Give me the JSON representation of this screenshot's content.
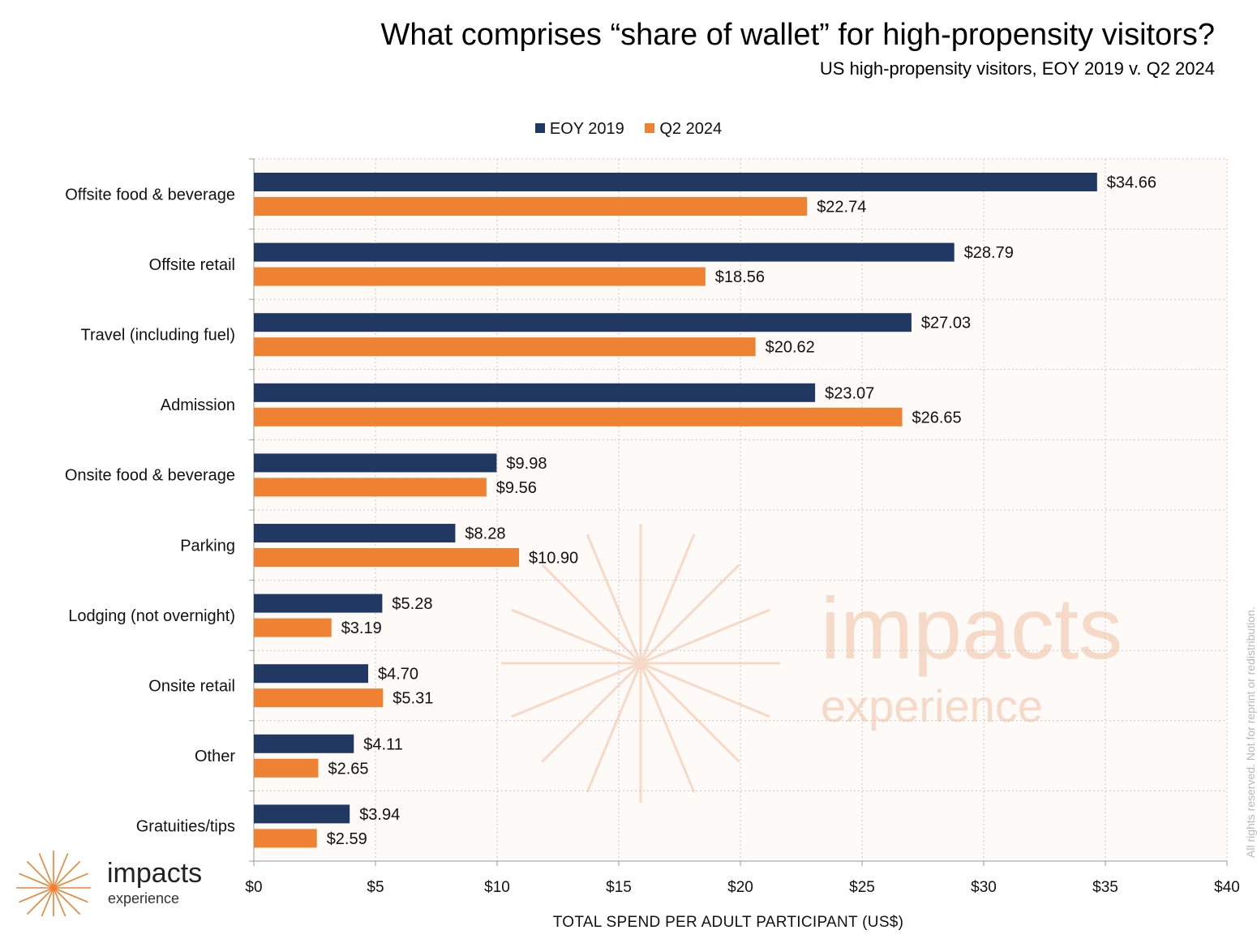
{
  "header": {
    "title": "What comprises “share of wallet” for high-propensity visitors?",
    "subtitle": "US high-propensity visitors, EOY 2019 v. Q2 2024"
  },
  "colors": {
    "eoy2019": "#213862",
    "q22024": "#ee8132",
    "plot_bg": "#fdfaf8",
    "grid": "#c8c8c8",
    "watermark": "#f6d9c6"
  },
  "watermark": {
    "word": "impacts",
    "sub": "experience"
  },
  "logo": {
    "word": "impacts",
    "sub": "experience"
  },
  "copyright": "All rights reserved. Not for reprint or redistribution.",
  "chart_data": {
    "type": "bar",
    "orientation": "horizontal",
    "title": "What comprises “share of wallet” for high-propensity visitors?",
    "subtitle": "US high-propensity visitors, EOY 2019 v. Q2 2024",
    "xlabel": "TOTAL SPEND PER ADULT PARTICIPANT (US$)",
    "ylabel": "",
    "xlim": [
      0,
      40
    ],
    "x_ticks": [
      0,
      5,
      10,
      15,
      20,
      25,
      30,
      35,
      40
    ],
    "x_tick_labels": [
      "$0",
      "$5",
      "$10",
      "$15",
      "$20",
      "$25",
      "$30",
      "$35",
      "$40"
    ],
    "grid": true,
    "legend_position": "top-center",
    "categories": [
      "Offsite food & beverage",
      "Offsite retail",
      "Travel (including fuel)",
      "Admission",
      "Onsite food & beverage",
      "Parking",
      "Lodging (not overnight)",
      "Onsite retail",
      "Other",
      "Gratuities/tips"
    ],
    "series": [
      {
        "name": "EOY 2019",
        "values": [
          34.66,
          28.79,
          27.03,
          23.07,
          9.98,
          8.28,
          5.28,
          4.7,
          4.11,
          3.94
        ],
        "labels": [
          "$34.66",
          "$28.79",
          "$27.03",
          "$23.07",
          "$9.98",
          "$8.28",
          "$5.28",
          "$4.70",
          "$4.11",
          "$3.94"
        ]
      },
      {
        "name": "Q2 2024",
        "values": [
          22.74,
          18.56,
          20.62,
          26.65,
          9.56,
          10.9,
          3.19,
          5.31,
          2.65,
          2.59
        ],
        "labels": [
          "$22.74",
          "$18.56",
          "$20.62",
          "$26.65",
          "$9.56",
          "$10.90",
          "$3.19",
          "$5.31",
          "$2.65",
          "$2.59"
        ]
      }
    ]
  }
}
